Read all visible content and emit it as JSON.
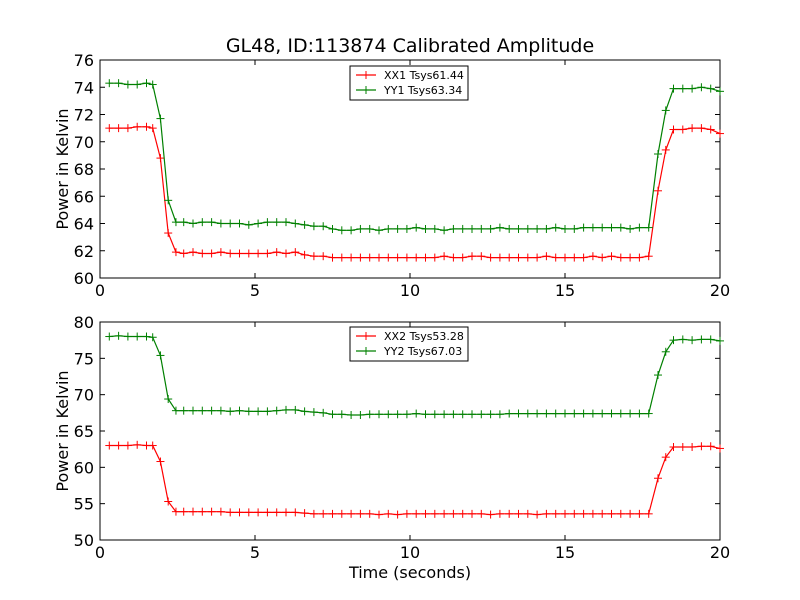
{
  "figure": {
    "title": "GL48, ID:113874 Calibrated Amplitude",
    "xlabel": "Time (seconds)"
  },
  "chart_data": [
    {
      "type": "line",
      "title": "GL48, ID:113874 Calibrated Amplitude",
      "xlabel": "",
      "ylabel": "Power in Kelvin",
      "xlim": [
        0,
        20
      ],
      "ylim": [
        60,
        76
      ],
      "xticks": [
        "0",
        "5",
        "10",
        "15",
        "20"
      ],
      "yticks": [
        "60",
        "62",
        "64",
        "66",
        "68",
        "70",
        "72",
        "74",
        "76"
      ],
      "legend_position": "top-center",
      "grid": false,
      "x": [
        0.3,
        0.6,
        0.9,
        1.2,
        1.5,
        1.7,
        1.95,
        2.2,
        2.45,
        2.7,
        3.0,
        3.3,
        3.6,
        3.9,
        4.2,
        4.5,
        4.8,
        5.1,
        5.4,
        5.7,
        6.0,
        6.3,
        6.6,
        6.9,
        7.2,
        7.5,
        7.8,
        8.1,
        8.4,
        8.7,
        9.0,
        9.3,
        9.6,
        9.9,
        10.2,
        10.5,
        10.8,
        11.1,
        11.4,
        11.7,
        12.0,
        12.3,
        12.6,
        12.9,
        13.2,
        13.5,
        13.8,
        14.1,
        14.4,
        14.7,
        15.0,
        15.3,
        15.6,
        15.9,
        16.2,
        16.5,
        16.8,
        17.1,
        17.4,
        17.7,
        18.0,
        18.25,
        18.5,
        18.8,
        19.1,
        19.4,
        19.7,
        20.0
      ],
      "series": [
        {
          "name": "XX1 Tsys61.44",
          "color": "#ff0000",
          "values": [
            71.0,
            71.0,
            71.0,
            71.1,
            71.1,
            71.0,
            68.8,
            63.3,
            61.9,
            61.8,
            61.9,
            61.8,
            61.8,
            61.9,
            61.8,
            61.8,
            61.8,
            61.8,
            61.8,
            61.9,
            61.8,
            61.9,
            61.7,
            61.6,
            61.6,
            61.5,
            61.5,
            61.5,
            61.5,
            61.5,
            61.5,
            61.5,
            61.5,
            61.5,
            61.5,
            61.5,
            61.5,
            61.6,
            61.5,
            61.5,
            61.6,
            61.6,
            61.5,
            61.5,
            61.5,
            61.5,
            61.5,
            61.5,
            61.6,
            61.5,
            61.5,
            61.5,
            61.5,
            61.6,
            61.5,
            61.6,
            61.5,
            61.5,
            61.5,
            61.6,
            66.4,
            69.4,
            70.9,
            70.9,
            71.0,
            71.0,
            70.9,
            70.6
          ]
        },
        {
          "name": "YY1 Tsys63.34",
          "color": "#008000",
          "values": [
            74.3,
            74.3,
            74.2,
            74.2,
            74.3,
            74.2,
            71.7,
            65.7,
            64.1,
            64.1,
            64.0,
            64.1,
            64.1,
            64.0,
            64.0,
            64.0,
            63.9,
            64.0,
            64.1,
            64.1,
            64.1,
            64.0,
            63.9,
            63.8,
            63.8,
            63.6,
            63.5,
            63.5,
            63.6,
            63.6,
            63.5,
            63.6,
            63.6,
            63.6,
            63.7,
            63.6,
            63.6,
            63.5,
            63.6,
            63.6,
            63.6,
            63.6,
            63.6,
            63.7,
            63.6,
            63.6,
            63.6,
            63.6,
            63.6,
            63.7,
            63.6,
            63.6,
            63.7,
            63.7,
            63.7,
            63.7,
            63.7,
            63.6,
            63.7,
            63.7,
            69.1,
            72.3,
            73.9,
            73.9,
            73.9,
            74.0,
            73.9,
            73.7
          ]
        }
      ]
    },
    {
      "type": "line",
      "title": "",
      "xlabel": "Time (seconds)",
      "ylabel": "Power in Kelvin",
      "xlim": [
        0,
        20
      ],
      "ylim": [
        50,
        80
      ],
      "xticks": [
        "0",
        "5",
        "10",
        "15",
        "20"
      ],
      "yticks": [
        "50",
        "55",
        "60",
        "65",
        "70",
        "75",
        "80"
      ],
      "legend_position": "top-center",
      "grid": false,
      "x": [
        0.3,
        0.6,
        0.9,
        1.2,
        1.5,
        1.7,
        1.95,
        2.2,
        2.45,
        2.7,
        3.0,
        3.3,
        3.6,
        3.9,
        4.2,
        4.5,
        4.8,
        5.1,
        5.4,
        5.7,
        6.0,
        6.3,
        6.6,
        6.9,
        7.2,
        7.5,
        7.8,
        8.1,
        8.4,
        8.7,
        9.0,
        9.3,
        9.6,
        9.9,
        10.2,
        10.5,
        10.8,
        11.1,
        11.4,
        11.7,
        12.0,
        12.3,
        12.6,
        12.9,
        13.2,
        13.5,
        13.8,
        14.1,
        14.4,
        14.7,
        15.0,
        15.3,
        15.6,
        15.9,
        16.2,
        16.5,
        16.8,
        17.1,
        17.4,
        17.7,
        18.0,
        18.25,
        18.5,
        18.8,
        19.1,
        19.4,
        19.7,
        20.0
      ],
      "series": [
        {
          "name": "XX2 Tsys53.28",
          "color": "#ff0000",
          "values": [
            63.0,
            63.0,
            63.0,
            63.1,
            63.0,
            63.0,
            60.8,
            55.3,
            53.9,
            53.9,
            53.9,
            53.9,
            53.9,
            53.9,
            53.8,
            53.8,
            53.8,
            53.8,
            53.8,
            53.8,
            53.8,
            53.8,
            53.7,
            53.6,
            53.6,
            53.6,
            53.6,
            53.6,
            53.6,
            53.6,
            53.5,
            53.6,
            53.5,
            53.6,
            53.6,
            53.6,
            53.6,
            53.6,
            53.6,
            53.6,
            53.6,
            53.6,
            53.5,
            53.6,
            53.6,
            53.6,
            53.6,
            53.5,
            53.6,
            53.6,
            53.6,
            53.6,
            53.6,
            53.6,
            53.6,
            53.6,
            53.6,
            53.6,
            53.6,
            53.6,
            58.5,
            61.4,
            62.8,
            62.8,
            62.8,
            62.9,
            62.9,
            62.6
          ]
        },
        {
          "name": "YY2 Tsys67.03",
          "color": "#008000",
          "values": [
            78.0,
            78.1,
            78.0,
            78.0,
            78.0,
            77.9,
            75.4,
            69.4,
            67.8,
            67.8,
            67.8,
            67.8,
            67.8,
            67.8,
            67.7,
            67.8,
            67.7,
            67.7,
            67.7,
            67.8,
            67.9,
            67.9,
            67.7,
            67.6,
            67.5,
            67.3,
            67.3,
            67.2,
            67.2,
            67.3,
            67.3,
            67.3,
            67.3,
            67.3,
            67.4,
            67.3,
            67.3,
            67.3,
            67.3,
            67.3,
            67.3,
            67.3,
            67.3,
            67.3,
            67.4,
            67.4,
            67.4,
            67.4,
            67.4,
            67.4,
            67.4,
            67.4,
            67.4,
            67.4,
            67.4,
            67.4,
            67.4,
            67.4,
            67.4,
            67.4,
            72.7,
            75.9,
            77.5,
            77.6,
            77.5,
            77.6,
            77.6,
            77.4
          ]
        }
      ]
    }
  ]
}
